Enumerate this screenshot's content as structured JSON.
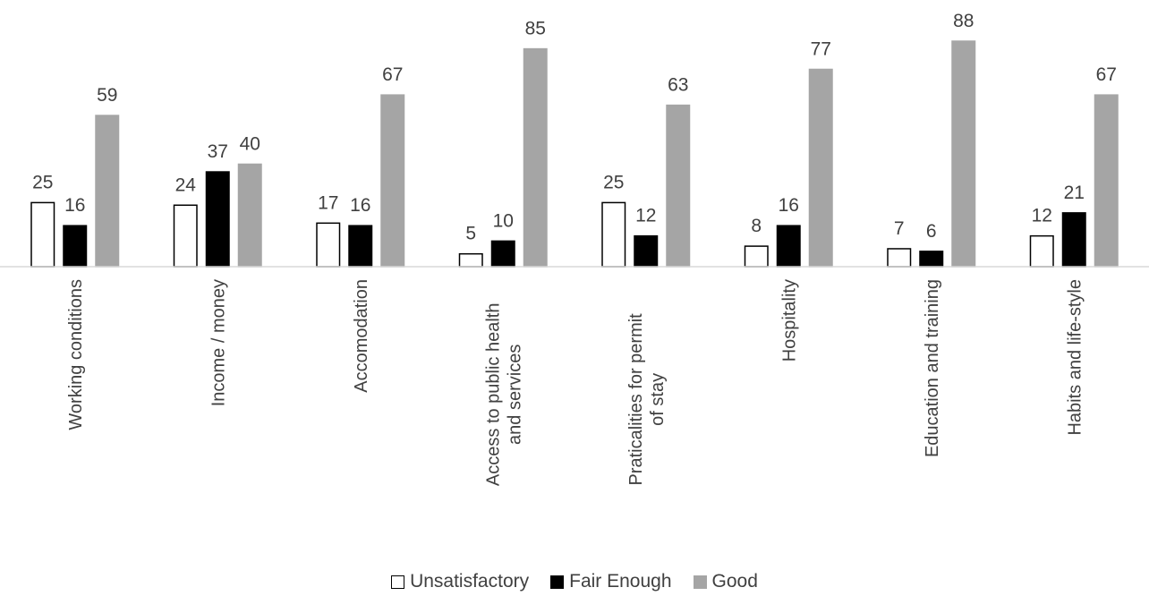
{
  "chart_data": {
    "type": "bar",
    "categories": [
      "Working conditions",
      "Income / money",
      "Accomodation",
      "Access to public health and services",
      "Praticalities for permit of stay",
      "Hospitality",
      "Education and training",
      "Habits and life-style"
    ],
    "series": [
      {
        "name": "Unsatisfactory",
        "values": [
          25,
          24,
          17,
          5,
          25,
          8,
          7,
          12
        ],
        "fill": "#ffffff",
        "stroke": "#000000"
      },
      {
        "name": "Fair Enough",
        "values": [
          16,
          37,
          16,
          10,
          12,
          16,
          6,
          21
        ],
        "fill": "#000000",
        "stroke": "#000000"
      },
      {
        "name": "Good",
        "values": [
          59,
          40,
          67,
          85,
          63,
          77,
          88,
          67
        ],
        "fill": "#a5a5a5",
        "stroke": "#a5a5a5"
      }
    ],
    "ylim": [
      0,
      88
    ],
    "legend_position": "bottom",
    "grid": false
  }
}
